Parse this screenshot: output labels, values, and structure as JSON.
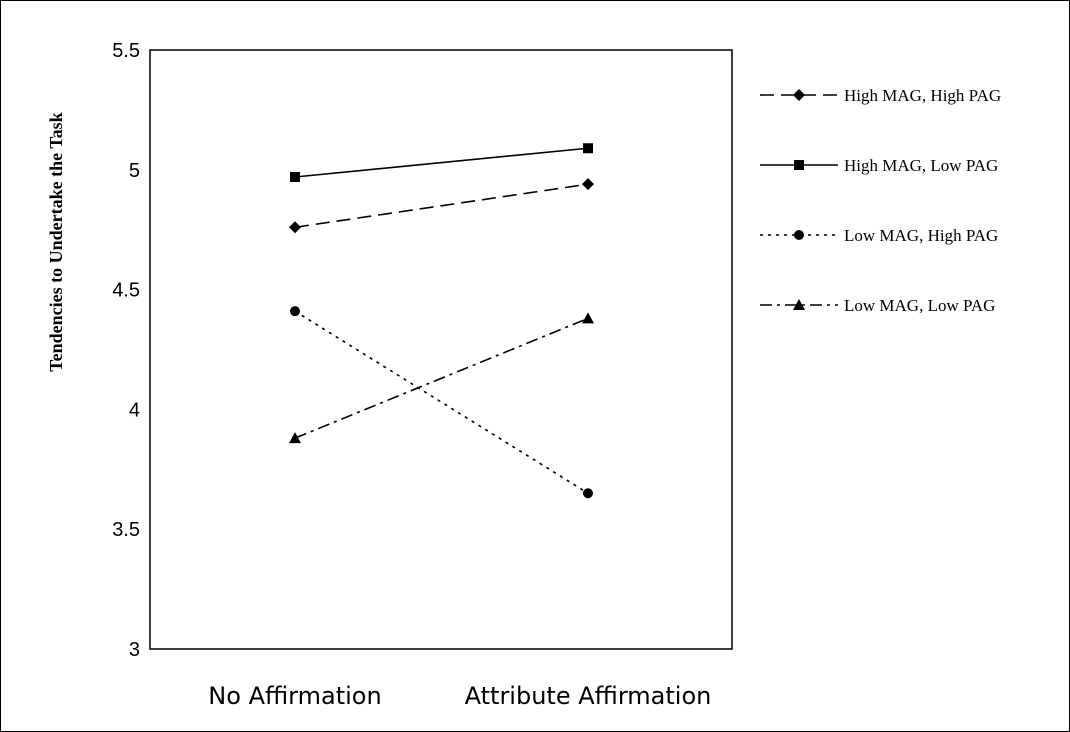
{
  "chart_data": {
    "type": "line",
    "title": "",
    "xlabel": "",
    "ylabel": "Tendencies to Undertake the Task",
    "categories": [
      "No Affirmation",
      "Attribute Affirmation"
    ],
    "ylim": [
      3,
      5.5
    ],
    "yticks": [
      3,
      3.5,
      4,
      4.5,
      5,
      5.5
    ],
    "ytick_labels": [
      "3",
      "3.5",
      "4",
      "4.5",
      "5",
      "5.5"
    ],
    "grid": false,
    "legend_position": "right",
    "series": [
      {
        "name": "High MAG, High PAG",
        "values": [
          4.76,
          4.94
        ],
        "marker": "diamond",
        "dash": "dashed"
      },
      {
        "name": "High MAG, Low PAG",
        "values": [
          4.97,
          5.09
        ],
        "marker": "square",
        "dash": "solid"
      },
      {
        "name": "Low MAG, High PAG",
        "values": [
          4.41,
          3.65
        ],
        "marker": "circle",
        "dash": "dotted"
      },
      {
        "name": "Low MAG, Low PAG",
        "values": [
          3.88,
          4.38
        ],
        "marker": "triangle",
        "dash": "dashdot"
      }
    ],
    "colors": {
      "line": "#000000",
      "background": "#ffffff"
    }
  }
}
